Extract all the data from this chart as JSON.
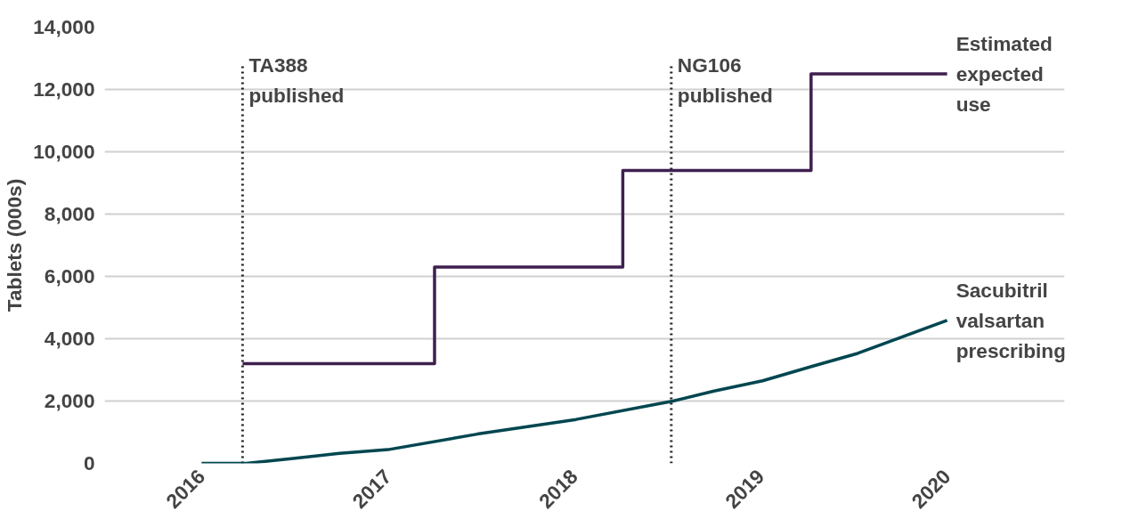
{
  "chart_data": {
    "type": "line",
    "ylabel": "Tablets (000s)",
    "xlim": [
      2015.48,
      2020.63
    ],
    "xticks": [
      2016,
      2017,
      2018,
      2019,
      2020
    ],
    "ylim": [
      0,
      14000
    ],
    "yticks": [
      {
        "value": 0,
        "label": "0"
      },
      {
        "value": 2000,
        "label": "2,000"
      },
      {
        "value": 4000,
        "label": "4,000"
      },
      {
        "value": 6000,
        "label": "6,000"
      },
      {
        "value": 8000,
        "label": "8,000"
      },
      {
        "value": 10000,
        "label": "10,000"
      },
      {
        "value": 12000,
        "label": "12,000"
      },
      {
        "value": 14000,
        "label": "14,000"
      }
    ],
    "grid": "y",
    "legend": false,
    "marker": "none",
    "line_style": "solid",
    "series": [
      {
        "name": "Estimated expected use",
        "type": "step",
        "color": "#3f1f4f",
        "x": [
          2016.22,
          2017.25,
          2018.26,
          2019.27,
          2020.0
        ],
        "values": [
          3200,
          6300,
          9400,
          12500,
          12500
        ]
      },
      {
        "name": "Sacubitril valsartan prescribing",
        "color": "#004650",
        "x": [
          2016.0,
          2016.24,
          2016.48,
          2016.74,
          2017.0,
          2017.48,
          2018.01,
          2018.53,
          2018.75,
          2019.01,
          2019.28,
          2019.52,
          2019.76,
          2020.0
        ],
        "values": [
          0,
          0,
          150,
          320,
          440,
          940,
          1410,
          2000,
          2320,
          2650,
          3120,
          3530,
          4060,
          4590
        ]
      }
    ],
    "ref_lines": [
      {
        "axis": "x",
        "value": 2016.22,
        "label": "TA388 published",
        "color": "#222222",
        "line_style": "dotted"
      },
      {
        "axis": "x",
        "value": 2018.52,
        "label": "NG106 published",
        "color": "#222222",
        "line_style": "dotted"
      }
    ]
  }
}
